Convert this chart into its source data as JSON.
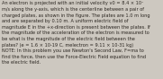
{
  "text": "An electron is projected with an initial velocity v0 = 8.4 × 10⁷\nm/s along the y-axis, which is the centerline between a pair of\ncharged plates, as shown in the figure. The plates are 1.0 m long\nand are separated by 0.10 m. A uniform electric field of\nmagnitude E in the +x-direction is present between the plates. If\nthe magnitude of the acceleration of the electron is measured to\nbe what is the magnitude of the electric field between the\nplates? (e = 1.6 × 10-19 C, melectron = 9.11 × 10-31 kg)\nNOTE: In this problem you use Newton's Second Law, F=ma to\nfind the force, then use the Force-Electric Field equation to find\nthe electric field.",
  "fontsize": 3.6,
  "bg_color": "#cdc8c0",
  "text_color": "#2a2520",
  "fig_width": 1.81,
  "fig_height": 0.88,
  "dpi": 100,
  "linespacing": 1.4
}
